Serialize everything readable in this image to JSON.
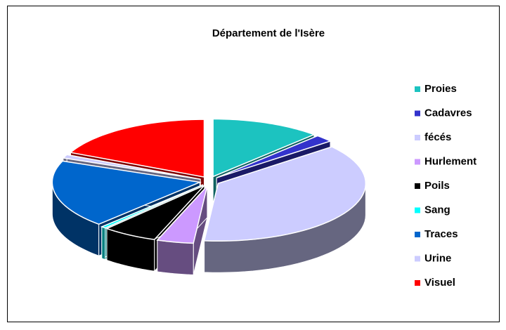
{
  "chart_data": {
    "type": "pie3d",
    "title": "Département de l'Isère",
    "categories": [
      "Proies",
      "Cadavres",
      "fécés",
      "Hurlement",
      "Poils",
      "Sang",
      "Traces",
      "Urine",
      "Visuel"
    ],
    "values": [
      12,
      2,
      37.5,
      4,
      6,
      0.5,
      19,
      1,
      18
    ],
    "colors": [
      "#1cc3c0",
      "#3333cc",
      "#ccccff",
      "#cc99ff",
      "#000000",
      "#00ffff",
      "#0066cc",
      "#ccccff",
      "#ff0000"
    ],
    "legend": "right"
  }
}
